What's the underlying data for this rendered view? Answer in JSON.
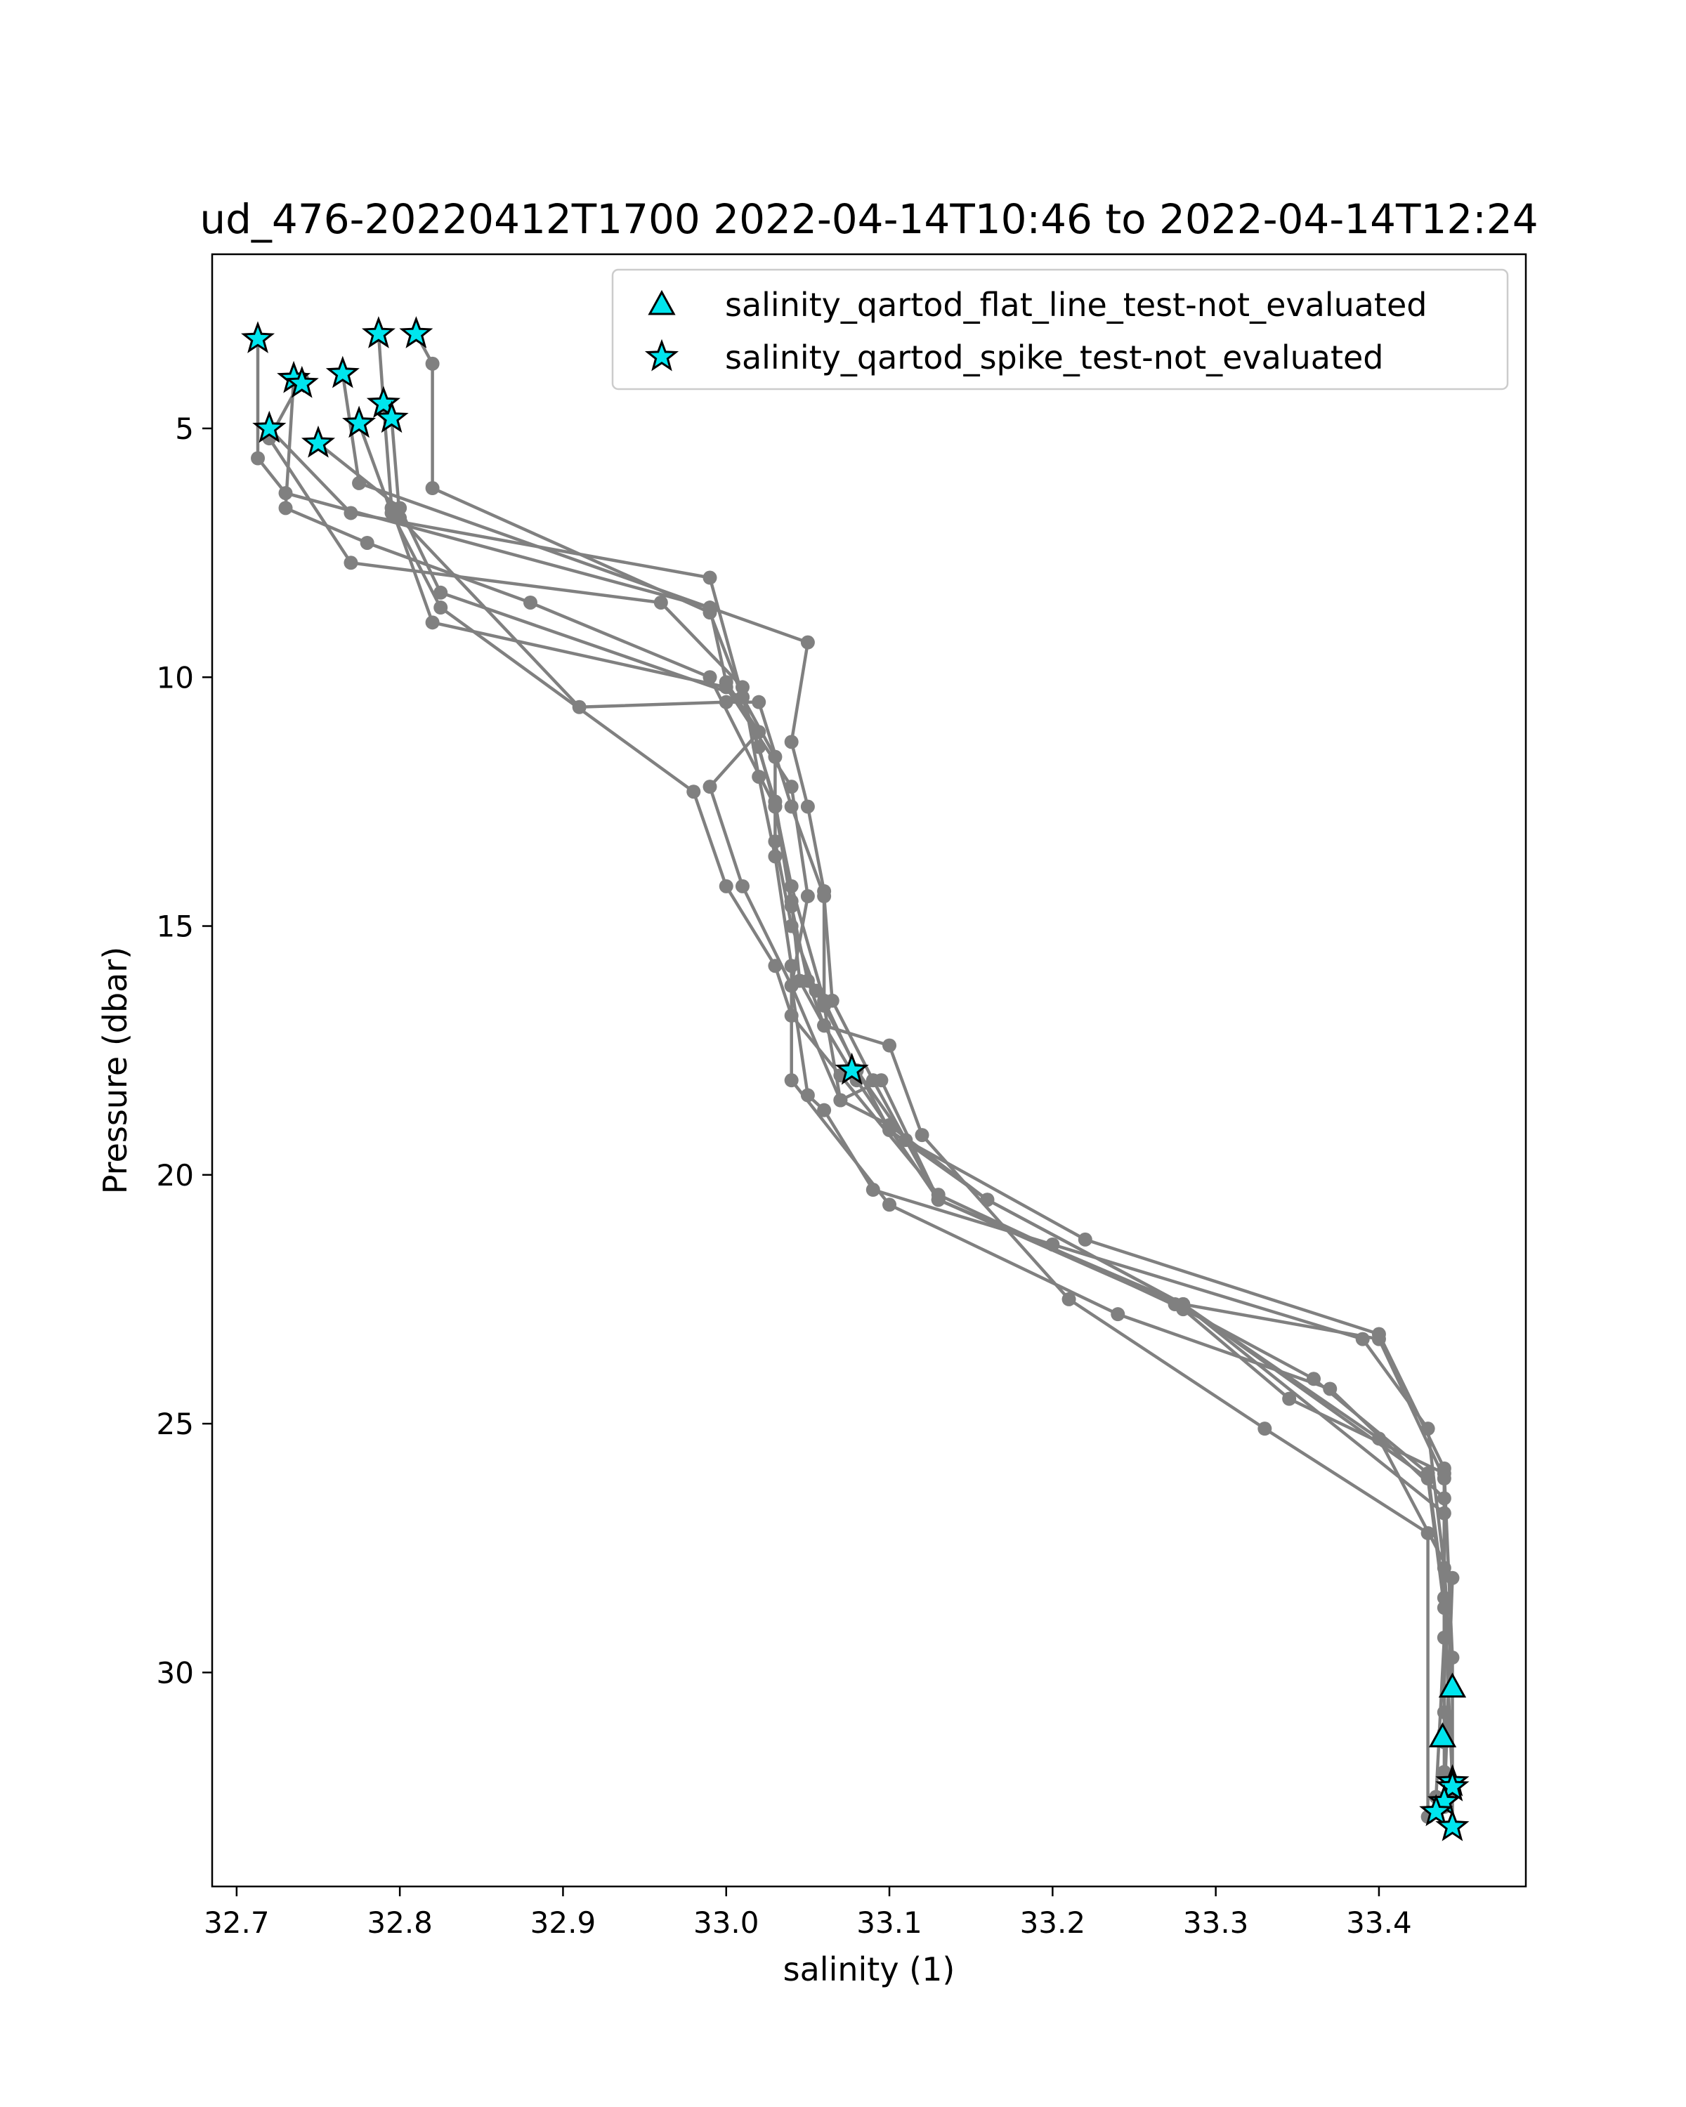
{
  "chart_data": {
    "type": "scatter",
    "title": "ud_476-20220412T1700 2022-04-14T10:46 to 2022-04-14T12:24",
    "xlabel": "salinity (1)",
    "ylabel": "Pressure (dbar)",
    "xlim": [
      32.685,
      33.49
    ],
    "ylim": [
      34.3,
      1.5
    ],
    "y_inverted": true,
    "x_ticks": [
      32.7,
      32.8,
      32.9,
      33.0,
      33.1,
      33.2,
      33.3,
      33.4
    ],
    "x_tick_labels": [
      "32.7",
      "32.8",
      "32.9",
      "33.0",
      "33.1",
      "33.2",
      "33.3",
      "33.4"
    ],
    "y_ticks": [
      5,
      10,
      15,
      20,
      25,
      30
    ],
    "y_tick_labels": [
      "5",
      "10",
      "15",
      "20",
      "25",
      "30"
    ],
    "grid": false,
    "legend_position": "top-right",
    "colors": {
      "profile": "#808080",
      "marker_fill": "#00e5ee",
      "marker_edge": "#000000"
    },
    "profiles": [
      [
        [
          32.713,
          3.2
        ],
        [
          32.713,
          5.6
        ],
        [
          32.73,
          6.3
        ],
        [
          32.99,
          8.6
        ],
        [
          33.0,
          10.1
        ],
        [
          33.02,
          11.1
        ],
        [
          32.99,
          12.2
        ],
        [
          33.01,
          14.2
        ],
        [
          33.04,
          16.2
        ],
        [
          33.05,
          18.4
        ],
        [
          33.06,
          18.7
        ],
        [
          33.09,
          20.3
        ],
        [
          33.2,
          21.4
        ],
        [
          33.39,
          23.3
        ],
        [
          33.43,
          25.1
        ],
        [
          33.44,
          27.9
        ],
        [
          33.445,
          30.3
        ]
      ],
      [
        [
          32.735,
          4.0
        ],
        [
          32.73,
          6.6
        ],
        [
          32.78,
          7.3
        ],
        [
          32.88,
          8.5
        ],
        [
          32.99,
          10.0
        ],
        [
          33.03,
          12.6
        ],
        [
          33.04,
          14.2
        ],
        [
          33.06,
          16.5
        ],
        [
          33.08,
          17.9
        ],
        [
          33.11,
          19.3
        ],
        [
          33.22,
          21.3
        ],
        [
          33.4,
          23.2
        ],
        [
          33.44,
          25.9
        ],
        [
          33.44,
          31.2
        ]
      ],
      [
        [
          32.72,
          5.0
        ],
        [
          32.77,
          6.7
        ],
        [
          32.99,
          8.0
        ],
        [
          33.01,
          10.4
        ],
        [
          33.02,
          11.4
        ],
        [
          33.03,
          12.6
        ],
        [
          33.04,
          14.6
        ],
        [
          33.05,
          16.1
        ],
        [
          33.06,
          17.0
        ],
        [
          33.08,
          18.1
        ],
        [
          33.13,
          20.5
        ],
        [
          33.275,
          22.6
        ],
        [
          33.36,
          24.1
        ],
        [
          33.43,
          26.0
        ],
        [
          33.44,
          28.5
        ],
        [
          33.445,
          32.2
        ]
      ],
      [
        [
          32.74,
          4.0
        ],
        [
          32.72,
          5.2
        ],
        [
          32.77,
          7.7
        ],
        [
          32.96,
          8.5
        ],
        [
          33.01,
          10.2
        ],
        [
          33.02,
          12.0
        ],
        [
          33.03,
          13.6
        ],
        [
          33.04,
          15.8
        ],
        [
          33.04,
          18.1
        ],
        [
          33.1,
          20.6
        ],
        [
          33.24,
          22.8
        ],
        [
          33.37,
          24.3
        ],
        [
          33.44,
          26.5
        ],
        [
          33.44,
          32.0
        ]
      ],
      [
        [
          32.765,
          3.9
        ],
        [
          32.775,
          6.1
        ],
        [
          33.05,
          9.3
        ],
        [
          33.04,
          11.3
        ],
        [
          33.05,
          12.6
        ],
        [
          33.06,
          14.3
        ],
        [
          33.06,
          16.6
        ],
        [
          33.07,
          18.5
        ],
        [
          33.1,
          19.0
        ],
        [
          33.16,
          20.5
        ],
        [
          33.28,
          22.6
        ],
        [
          33.4,
          25.3
        ],
        [
          33.445,
          28.1
        ],
        [
          33.44,
          32.7
        ]
      ],
      [
        [
          32.75,
          5.3
        ],
        [
          32.8,
          6.6
        ],
        [
          32.825,
          8.3
        ],
        [
          33.01,
          10.4
        ],
        [
          33.03,
          12.5
        ],
        [
          33.04,
          14.5
        ],
        [
          33.045,
          16.1
        ],
        [
          33.06,
          17.0
        ],
        [
          33.1,
          17.4
        ],
        [
          33.12,
          19.2
        ],
        [
          33.21,
          22.5
        ],
        [
          33.33,
          25.1
        ],
        [
          33.43,
          27.2
        ],
        [
          33.43,
          32.9
        ]
      ],
      [
        [
          32.775,
          4.9
        ],
        [
          32.795,
          6.7
        ],
        [
          32.825,
          8.6
        ],
        [
          32.98,
          12.3
        ],
        [
          33.0,
          14.2
        ],
        [
          33.03,
          15.8
        ],
        [
          33.04,
          16.8
        ],
        [
          33.07,
          18.0
        ],
        [
          33.13,
          20.4
        ],
        [
          33.28,
          22.7
        ],
        [
          33.345,
          24.5
        ],
        [
          33.44,
          26.0
        ],
        [
          33.445,
          29.7
        ],
        [
          33.445,
          33.1
        ]
      ],
      [
        [
          32.787,
          3.1
        ],
        [
          32.79,
          4.5
        ],
        [
          32.795,
          6.6
        ],
        [
          32.82,
          8.9
        ],
        [
          33.0,
          10.2
        ],
        [
          33.04,
          12.2
        ],
        [
          33.05,
          14.4
        ],
        [
          33.04,
          16.2
        ],
        [
          33.07,
          18.5
        ],
        [
          33.095,
          18.1
        ],
        [
          33.13,
          20.5
        ],
        [
          33.28,
          22.6
        ],
        [
          33.4,
          23.3
        ],
        [
          33.44,
          26.1
        ],
        [
          33.44,
          29.3
        ],
        [
          33.435,
          32.5
        ]
      ],
      [
        [
          32.81,
          3.1
        ],
        [
          32.82,
          3.7
        ],
        [
          32.82,
          6.2
        ],
        [
          32.99,
          8.7
        ],
        [
          33.01,
          10.4
        ],
        [
          33.03,
          11.6
        ],
        [
          33.03,
          13.3
        ],
        [
          33.04,
          15.0
        ],
        [
          33.055,
          16.3
        ],
        [
          33.1,
          19.1
        ],
        [
          33.16,
          20.5
        ],
        [
          33.28,
          22.6
        ],
        [
          33.44,
          26.8
        ],
        [
          33.44,
          30.8
        ]
      ],
      [
        [
          32.795,
          4.8
        ],
        [
          32.8,
          6.8
        ],
        [
          32.91,
          10.6
        ],
        [
          33.0,
          10.5
        ],
        [
          33.02,
          10.5
        ],
        [
          33.04,
          12.6
        ],
        [
          33.06,
          14.4
        ],
        [
          33.065,
          16.5
        ],
        [
          33.09,
          18.1
        ],
        [
          33.13,
          20.5
        ],
        [
          33.28,
          22.6
        ],
        [
          33.43,
          26.1
        ],
        [
          33.44,
          28.7
        ],
        [
          33.44,
          31.4
        ]
      ]
    ],
    "series": [
      {
        "name": "salinity_qartod_flat_line_test-not_evaluated",
        "marker": "triangle",
        "points": [
          [
            33.445,
            30.3
          ],
          [
            33.439,
            31.3
          ]
        ]
      },
      {
        "name": "salinity_qartod_spike_test-not_evaluated",
        "marker": "star",
        "points": [
          [
            32.713,
            3.2
          ],
          [
            32.735,
            4.0
          ],
          [
            32.74,
            4.1
          ],
          [
            32.72,
            5.0
          ],
          [
            32.75,
            5.3
          ],
          [
            32.765,
            3.9
          ],
          [
            32.775,
            4.9
          ],
          [
            32.787,
            3.1
          ],
          [
            32.79,
            4.5
          ],
          [
            32.795,
            4.8
          ],
          [
            32.81,
            3.1
          ],
          [
            33.077,
            17.9
          ],
          [
            33.445,
            32.2
          ],
          [
            33.445,
            32.3
          ],
          [
            33.44,
            32.6
          ],
          [
            33.435,
            32.8
          ],
          [
            33.445,
            33.1
          ]
        ]
      }
    ]
  }
}
